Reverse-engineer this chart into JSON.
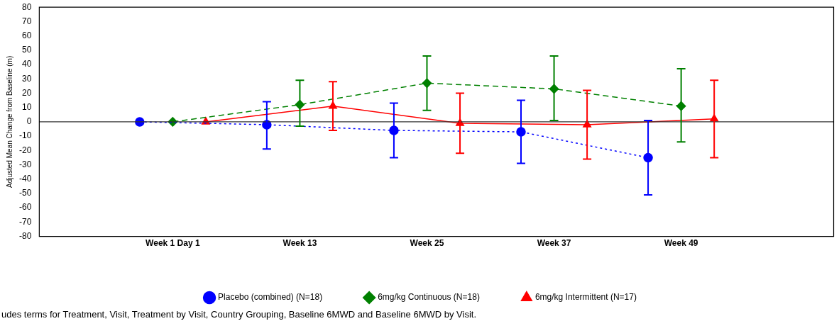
{
  "chart_data": {
    "type": "line",
    "ylabel": "Adjusted Mean Change from Baseline (m)",
    "categories": [
      "Week 1 Day 1",
      "Week 13",
      "Week 25",
      "Week 37",
      "Week 49"
    ],
    "ylim": [
      -80,
      80
    ],
    "yticks": [
      -80,
      -70,
      -60,
      -50,
      -40,
      -30,
      -20,
      -10,
      0,
      10,
      20,
      30,
      40,
      50,
      60,
      70,
      80
    ],
    "grid": false,
    "legend": "bottom",
    "ref_lines": [
      {
        "axis": "y",
        "value": 0,
        "color": "#333333",
        "line_style": "solid"
      }
    ],
    "series": [
      {
        "name": "Placebo (combined) (N=18)",
        "color": "#0000ff",
        "marker": "circle",
        "line_style": "dotted",
        "values": [
          0,
          -2,
          -6,
          -7,
          -25
        ],
        "errors": [
          null,
          [
            -19,
            14
          ],
          [
            -25,
            13
          ],
          [
            -29,
            15
          ],
          [
            -51,
            1
          ]
        ]
      },
      {
        "name": "6mg/kg Continuous (N=18)",
        "color": "#008000",
        "marker": "diamond",
        "line_style": "dashed",
        "values": [
          0,
          12,
          27,
          23,
          11
        ],
        "errors": [
          null,
          [
            -3,
            29
          ],
          [
            8,
            46
          ],
          [
            1,
            46
          ],
          [
            -14,
            37
          ]
        ]
      },
      {
        "name": "6mg/kg Intermittent (N=17)",
        "color": "#ff0000",
        "marker": "triangle",
        "line_style": "solid",
        "values": [
          0,
          11,
          -1,
          -2,
          2
        ],
        "errors": [
          null,
          [
            -6,
            28
          ],
          [
            -22,
            20
          ],
          [
            -26,
            22
          ],
          [
            -25,
            29
          ]
        ]
      }
    ],
    "annotations": [
      "udes terms for Treatment, Visit, Treatment by Visit, Country Grouping, Baseline 6MWD and Baseline 6MWD by Visit."
    ]
  }
}
